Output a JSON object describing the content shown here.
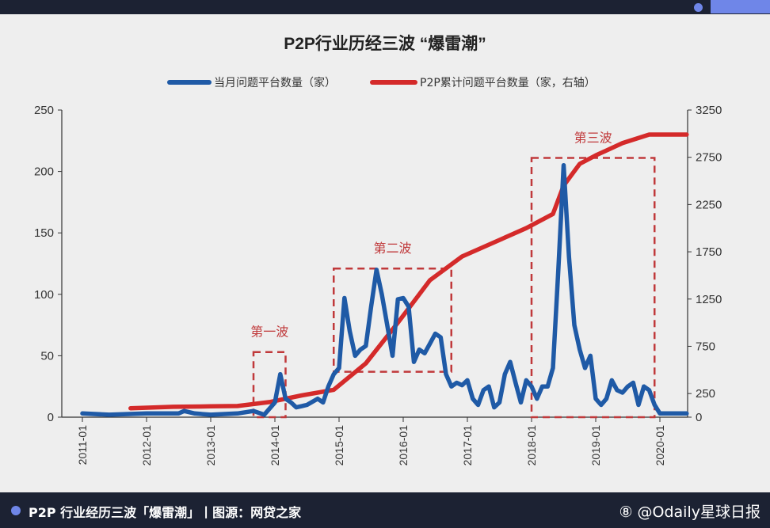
{
  "caption": "P2P 行业经历三波「爆雷潮」丨图源：网贷之家",
  "watermark": "⑧ @Odaily星球日报",
  "colors": {
    "monthly": "#1f5aa6",
    "cumulative": "#d42a2a",
    "box": "#c0393b",
    "background": "#eeeeee",
    "bar": "#1c2233",
    "accent": "#6f86e8"
  },
  "chart_data": {
    "type": "line",
    "title": "P2P行业历经三波 “爆雷潮”",
    "legend_position": "top",
    "grid": false,
    "x_ticks": [
      "2011-01",
      "2012-01",
      "2013-01",
      "2014-01",
      "2015-01",
      "2016-01",
      "2017-01",
      "2018-01",
      "2019-01",
      "2020-01"
    ],
    "x_range": [
      "2011-01",
      "2020-06"
    ],
    "y_left": {
      "range": [
        0,
        250
      ],
      "ticks": [
        "0",
        "50",
        "100",
        "150",
        "200",
        "250"
      ]
    },
    "y_right": {
      "range": [
        0,
        3250
      ],
      "ticks": [
        "0",
        "250",
        "750",
        "1250",
        "1750",
        "2250",
        "2750",
        "3250"
      ]
    },
    "series": [
      {
        "name": "当月问题平台数量（家）",
        "axis": "left",
        "points": [
          [
            "2011-01",
            3
          ],
          [
            "2011-06",
            2
          ],
          [
            "2012-01",
            3
          ],
          [
            "2012-07",
            3
          ],
          [
            "2012-08",
            5
          ],
          [
            "2012-10",
            3
          ],
          [
            "2013-01",
            2
          ],
          [
            "2013-06",
            3
          ],
          [
            "2013-09",
            5
          ],
          [
            "2013-11",
            2
          ],
          [
            "2014-01",
            12
          ],
          [
            "2014-02",
            35
          ],
          [
            "2014-03",
            15
          ],
          [
            "2014-04",
            12
          ],
          [
            "2014-05",
            8
          ],
          [
            "2014-07",
            10
          ],
          [
            "2014-09",
            15
          ],
          [
            "2014-10",
            12
          ],
          [
            "2014-11",
            25
          ],
          [
            "2014-12",
            35
          ],
          [
            "2015-01",
            40
          ],
          [
            "2015-02",
            97
          ],
          [
            "2015-03",
            70
          ],
          [
            "2015-04",
            50
          ],
          [
            "2015-05",
            55
          ],
          [
            "2015-06",
            58
          ],
          [
            "2015-07",
            90
          ],
          [
            "2015-08",
            120
          ],
          [
            "2015-09",
            100
          ],
          [
            "2015-10",
            75
          ],
          [
            "2015-11",
            50
          ],
          [
            "2015-12",
            96
          ],
          [
            "2016-01",
            97
          ],
          [
            "2016-02",
            90
          ],
          [
            "2016-03",
            45
          ],
          [
            "2016-04",
            55
          ],
          [
            "2016-05",
            52
          ],
          [
            "2016-06",
            60
          ],
          [
            "2016-07",
            68
          ],
          [
            "2016-08",
            65
          ],
          [
            "2016-09",
            35
          ],
          [
            "2016-10",
            25
          ],
          [
            "2016-11",
            28
          ],
          [
            "2016-12",
            26
          ],
          [
            "2017-01",
            30
          ],
          [
            "2017-02",
            15
          ],
          [
            "2017-03",
            10
          ],
          [
            "2017-04",
            22
          ],
          [
            "2017-05",
            25
          ],
          [
            "2017-06",
            8
          ],
          [
            "2017-07",
            12
          ],
          [
            "2017-08",
            35
          ],
          [
            "2017-09",
            45
          ],
          [
            "2017-10",
            28
          ],
          [
            "2017-11",
            12
          ],
          [
            "2017-12",
            30
          ],
          [
            "2018-01",
            25
          ],
          [
            "2018-02",
            15
          ],
          [
            "2018-03",
            25
          ],
          [
            "2018-04",
            25
          ],
          [
            "2018-05",
            40
          ],
          [
            "2018-06",
            120
          ],
          [
            "2018-07",
            205
          ],
          [
            "2018-08",
            130
          ],
          [
            "2018-09",
            75
          ],
          [
            "2018-10",
            55
          ],
          [
            "2018-11",
            40
          ],
          [
            "2018-12",
            50
          ],
          [
            "2019-01",
            15
          ],
          [
            "2019-02",
            10
          ],
          [
            "2019-03",
            15
          ],
          [
            "2019-04",
            30
          ],
          [
            "2019-05",
            22
          ],
          [
            "2019-06",
            20
          ],
          [
            "2019-07",
            25
          ],
          [
            "2019-08",
            28
          ],
          [
            "2019-09",
            10
          ],
          [
            "2019-10",
            25
          ],
          [
            "2019-11",
            22
          ],
          [
            "2019-12",
            10
          ],
          [
            "2020-01",
            3
          ],
          [
            "2020-06",
            3
          ]
        ]
      },
      {
        "name": "P2P累计问题平台数量（家，右轴）",
        "axis": "right",
        "points": [
          [
            "2011-10",
            95
          ],
          [
            "2012-06",
            110
          ],
          [
            "2013-01",
            115
          ],
          [
            "2013-06",
            118
          ],
          [
            "2013-12",
            160
          ],
          [
            "2014-06",
            230
          ],
          [
            "2014-12",
            290
          ],
          [
            "2015-06",
            570
          ],
          [
            "2015-12",
            1000
          ],
          [
            "2016-06",
            1450
          ],
          [
            "2016-12",
            1700
          ],
          [
            "2017-06",
            1850
          ],
          [
            "2017-12",
            2000
          ],
          [
            "2018-05",
            2150
          ],
          [
            "2018-07",
            2450
          ],
          [
            "2018-10",
            2680
          ],
          [
            "2019-01",
            2770
          ],
          [
            "2019-06",
            2900
          ],
          [
            "2019-11",
            2990
          ],
          [
            "2020-06",
            2990
          ]
        ]
      }
    ],
    "annotations": [
      {
        "label": "第一波",
        "from": "2013-09",
        "to": "2014-03",
        "y_range": [
          0,
          53
        ]
      },
      {
        "label": "第二波",
        "from": "2014-12",
        "to": "2016-10",
        "y_range": [
          37,
          121
        ]
      },
      {
        "label": "第三波",
        "from": "2018-01",
        "to": "2019-12",
        "y_range": [
          0,
          211
        ]
      }
    ]
  }
}
